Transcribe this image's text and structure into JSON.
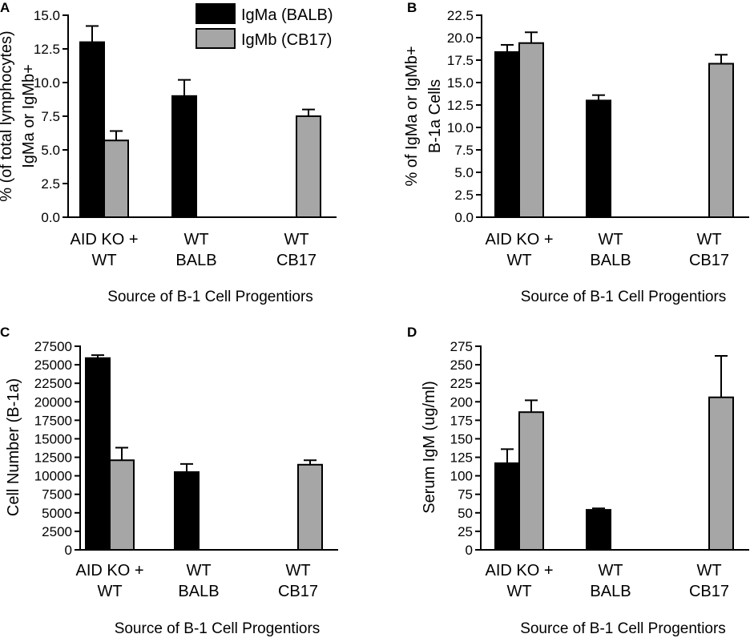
{
  "colors": {
    "series_0": "#000000",
    "series_1": "#a6a6a6"
  },
  "legend": [
    {
      "label": "IgMa (BALB)",
      "color": "#000000"
    },
    {
      "label": "IgMb (CB17)",
      "color": "#a6a6a6"
    }
  ],
  "chart_data": [
    {
      "panel": "A",
      "type": "bar",
      "ylabel_lines": [
        "% (of total lymphocytes)",
        "IgMa or IgMb+"
      ],
      "xlabel": "Source of B-1 Cell Progentiors",
      "ylim": [
        0,
        15
      ],
      "yticks": [
        "0.0",
        "2.5",
        "5.0",
        "7.5",
        "10.0",
        "12.5",
        "15.0"
      ],
      "tick_values": [
        0,
        2.5,
        5,
        7.5,
        10,
        12.5,
        15
      ],
      "categories": [
        [
          "AID KO +",
          "WT"
        ],
        [
          "WT",
          "BALB"
        ],
        [
          "WT",
          "CB17"
        ]
      ],
      "series": [
        {
          "name": "IgMa (BALB)",
          "values": [
            13.0,
            9.0,
            null
          ],
          "errors": [
            1.2,
            1.2,
            null
          ]
        },
        {
          "name": "IgMb (CB17)",
          "values": [
            5.7,
            null,
            7.5
          ],
          "errors": [
            0.7,
            null,
            0.5
          ]
        }
      ]
    },
    {
      "panel": "B",
      "type": "bar",
      "ylabel_lines": [
        "% of IgMa or IgMb+",
        "B-1a Cells"
      ],
      "xlabel": "Source of B-1 Cell Progentiors",
      "ylim": [
        0,
        22.5
      ],
      "yticks": [
        "0.0",
        "2.5",
        "5.0",
        "7.5",
        "10.0",
        "12.5",
        "15.0",
        "17.5",
        "20.0",
        "22.5"
      ],
      "tick_values": [
        0,
        2.5,
        5,
        7.5,
        10,
        12.5,
        15,
        17.5,
        20,
        22.5
      ],
      "categories": [
        [
          "AID KO +",
          "WT"
        ],
        [
          "WT",
          "BALB"
        ],
        [
          "WT",
          "CB17"
        ]
      ],
      "series": [
        {
          "name": "IgMa (BALB)",
          "values": [
            18.4,
            13.0,
            null
          ],
          "errors": [
            0.8,
            0.6,
            null
          ]
        },
        {
          "name": "IgMb (CB17)",
          "values": [
            19.4,
            null,
            17.1
          ],
          "errors": [
            1.2,
            null,
            1.0
          ]
        }
      ]
    },
    {
      "panel": "C",
      "type": "bar",
      "ylabel_lines": [
        "Cell Number (B-1a)"
      ],
      "xlabel": "Source of B-1 Cell Progentiors",
      "ylim": [
        0,
        27500
      ],
      "yticks": [
        "0",
        "2500",
        "5000",
        "7500",
        "10000",
        "12500",
        "15000",
        "17500",
        "20000",
        "22500",
        "25000",
        "27500"
      ],
      "tick_values": [
        0,
        2500,
        5000,
        7500,
        10000,
        12500,
        15000,
        17500,
        20000,
        22500,
        25000,
        27500
      ],
      "categories": [
        [
          "AID KO +",
          "WT"
        ],
        [
          "WT",
          "BALB"
        ],
        [
          "WT",
          "CB17"
        ]
      ],
      "series": [
        {
          "name": "IgMa (BALB)",
          "values": [
            25900,
            10500,
            null
          ],
          "errors": [
            400,
            1100,
            null
          ]
        },
        {
          "name": "IgMb (CB17)",
          "values": [
            12100,
            null,
            11500
          ],
          "errors": [
            1700,
            null,
            600
          ]
        }
      ]
    },
    {
      "panel": "D",
      "type": "bar",
      "ylabel_lines": [
        "Serum IgM (ug/ml)"
      ],
      "xlabel": "Source of B-1 Cell Progentiors",
      "ylim": [
        0,
        275
      ],
      "yticks": [
        "0",
        "25",
        "50",
        "75",
        "100",
        "125",
        "150",
        "175",
        "200",
        "225",
        "250",
        "275"
      ],
      "tick_values": [
        0,
        25,
        50,
        75,
        100,
        125,
        150,
        175,
        200,
        225,
        250,
        275
      ],
      "categories": [
        [
          "AID KO +",
          "WT"
        ],
        [
          "WT",
          "BALB"
        ],
        [
          "WT",
          "CB17"
        ]
      ],
      "series": [
        {
          "name": "IgMa (BALB)",
          "values": [
            117,
            54,
            null
          ],
          "errors": [
            19,
            2,
            null
          ]
        },
        {
          "name": "IgMb (CB17)",
          "values": [
            186,
            null,
            206
          ],
          "errors": [
            16,
            null,
            56
          ]
        }
      ]
    }
  ]
}
